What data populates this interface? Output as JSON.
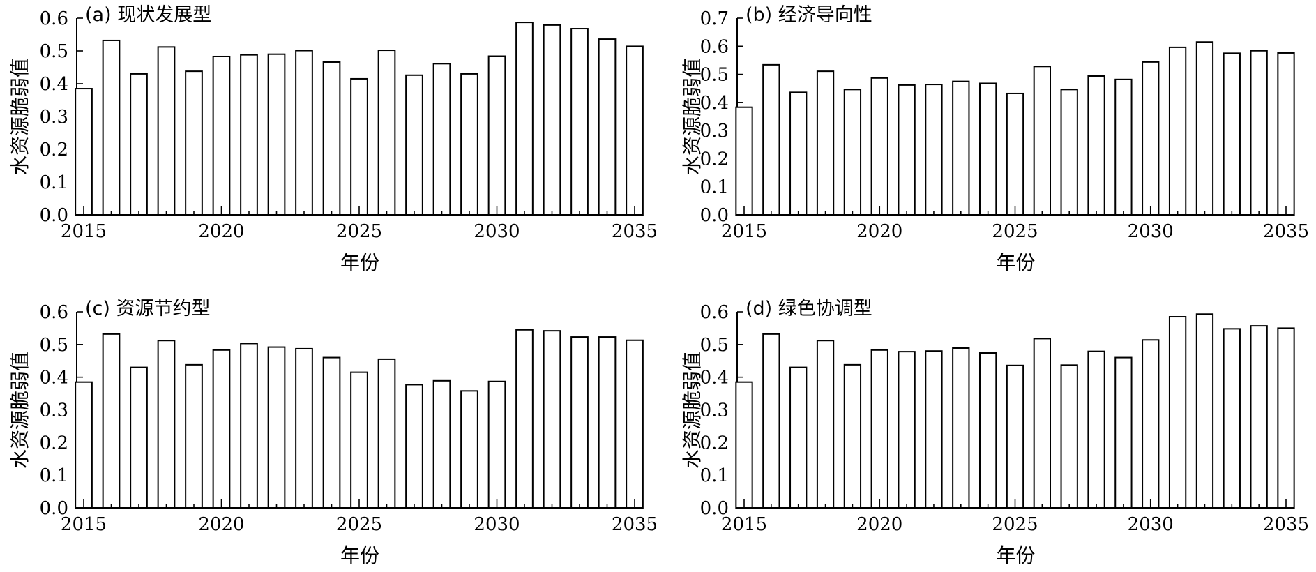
{
  "chart_data": [
    {
      "type": "bar",
      "title": "(a) 现状发展型",
      "xlabel": "年份",
      "ylabel": "水资源脆弱值",
      "x": [
        2015,
        2016,
        2017,
        2018,
        2019,
        2020,
        2021,
        2022,
        2023,
        2024,
        2025,
        2026,
        2027,
        2028,
        2029,
        2030,
        2031,
        2032,
        2033,
        2034,
        2035
      ],
      "values": [
        0.385,
        0.532,
        0.43,
        0.512,
        0.438,
        0.483,
        0.488,
        0.49,
        0.501,
        0.466,
        0.415,
        0.502,
        0.426,
        0.461,
        0.43,
        0.484,
        0.587,
        0.579,
        0.568,
        0.536,
        0.514
      ],
      "ylim": [
        0,
        0.6
      ],
      "yticks": [
        "0.0",
        "0.1",
        "0.2",
        "0.3",
        "0.4",
        "0.5",
        "0.6"
      ],
      "xticks": [
        "2015",
        "2020",
        "2025",
        "2030",
        "2035"
      ]
    },
    {
      "type": "bar",
      "title": "(b) 经济导向性",
      "xlabel": "年份",
      "ylabel": "水资源脆弱值",
      "x": [
        2015,
        2016,
        2017,
        2018,
        2019,
        2020,
        2021,
        2022,
        2023,
        2024,
        2025,
        2026,
        2027,
        2028,
        2029,
        2030,
        2031,
        2032,
        2033,
        2034,
        2035
      ],
      "values": [
        0.383,
        0.534,
        0.436,
        0.511,
        0.446,
        0.487,
        0.462,
        0.464,
        0.475,
        0.468,
        0.432,
        0.528,
        0.446,
        0.494,
        0.482,
        0.544,
        0.596,
        0.615,
        0.575,
        0.584,
        0.576
      ],
      "ylim": [
        0,
        0.7
      ],
      "yticks": [
        "0.0",
        "0.1",
        "0.2",
        "0.3",
        "0.4",
        "0.5",
        "0.6",
        "0.7"
      ],
      "xticks": [
        "2015",
        "2020",
        "2025",
        "2030",
        "2035"
      ]
    },
    {
      "type": "bar",
      "title": "(c) 资源节约型",
      "xlabel": "年份",
      "ylabel": "水资源脆弱值",
      "x": [
        2015,
        2016,
        2017,
        2018,
        2019,
        2020,
        2021,
        2022,
        2023,
        2024,
        2025,
        2026,
        2027,
        2028,
        2029,
        2030,
        2031,
        2032,
        2033,
        2034,
        2035
      ],
      "values": [
        0.385,
        0.532,
        0.43,
        0.512,
        0.438,
        0.483,
        0.503,
        0.492,
        0.487,
        0.46,
        0.415,
        0.455,
        0.377,
        0.389,
        0.358,
        0.387,
        0.545,
        0.542,
        0.523,
        0.523,
        0.513
      ],
      "ylim": [
        0,
        0.6
      ],
      "yticks": [
        "0.0",
        "0.1",
        "0.2",
        "0.3",
        "0.4",
        "0.5",
        "0.6"
      ],
      "xticks": [
        "2015",
        "2020",
        "2025",
        "2030",
        "2035"
      ]
    },
    {
      "type": "bar",
      "title": "(d) 绿色协调型",
      "xlabel": "年份",
      "ylabel": "水资源脆弱值",
      "x": [
        2015,
        2016,
        2017,
        2018,
        2019,
        2020,
        2021,
        2022,
        2023,
        2024,
        2025,
        2026,
        2027,
        2028,
        2029,
        2030,
        2031,
        2032,
        2033,
        2034,
        2035
      ],
      "values": [
        0.385,
        0.532,
        0.43,
        0.512,
        0.438,
        0.483,
        0.478,
        0.48,
        0.489,
        0.474,
        0.436,
        0.518,
        0.437,
        0.479,
        0.46,
        0.514,
        0.585,
        0.593,
        0.548,
        0.557,
        0.55
      ],
      "ylim": [
        0,
        0.6
      ],
      "yticks": [
        "0.0",
        "0.1",
        "0.2",
        "0.3",
        "0.4",
        "0.5",
        "0.6"
      ],
      "xticks": [
        "2015",
        "2020",
        "2025",
        "2030",
        "2035"
      ]
    }
  ]
}
